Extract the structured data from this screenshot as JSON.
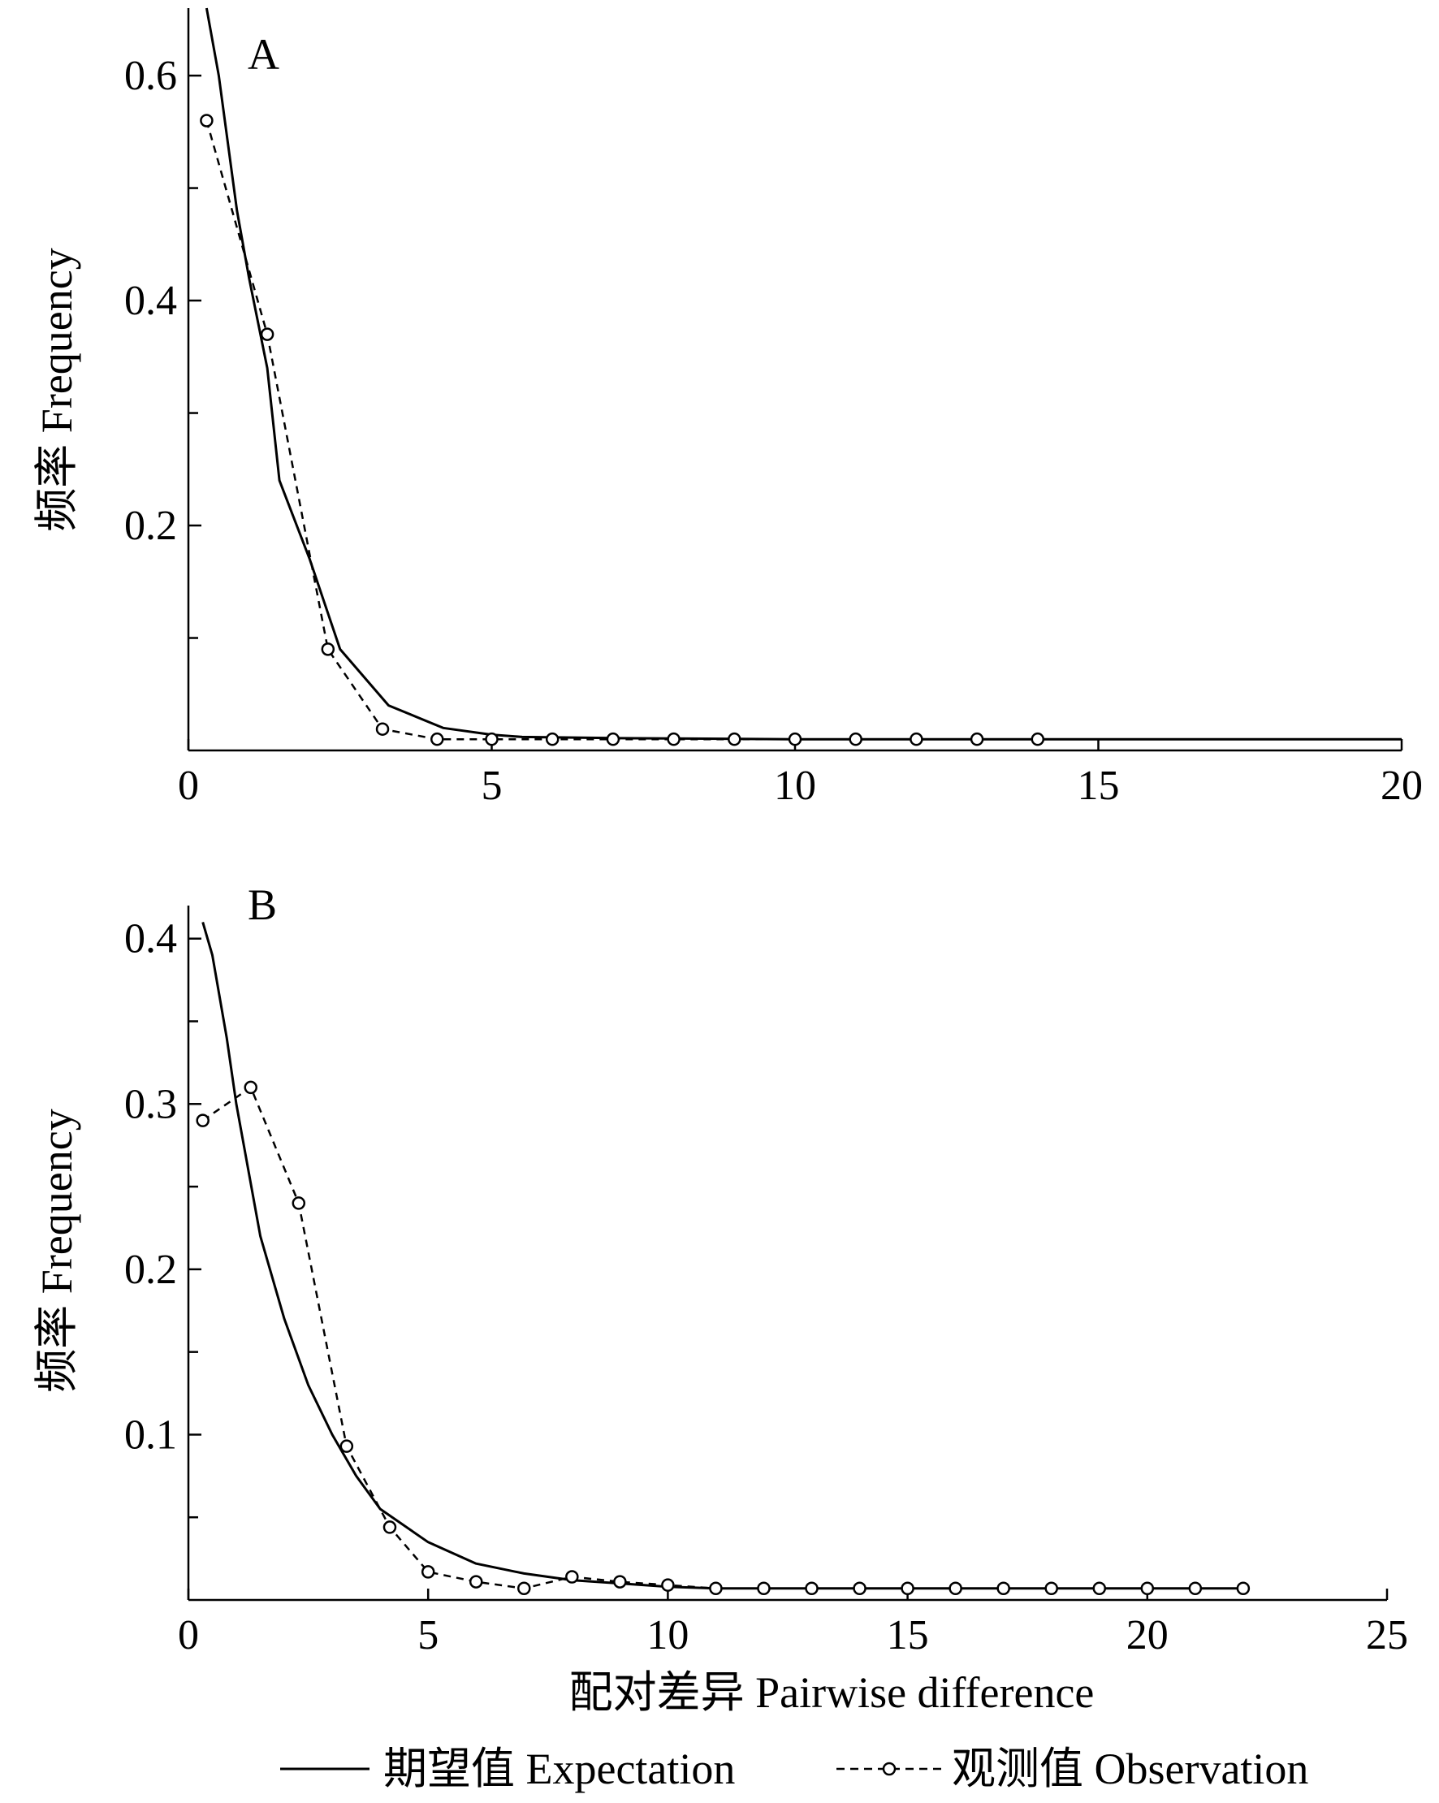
{
  "figure": {
    "xlabel": "配对差异 Pairwise difference",
    "ylabel": "频率 Frequency",
    "legend": {
      "placement": "bottom",
      "expectation_label": "期望值 Expectation",
      "observation_label": "观测值 Observation"
    }
  },
  "chart_data": [
    {
      "type": "line",
      "panel_label": "A",
      "xlabel": "",
      "ylabel": "频率 Frequency",
      "xlim": [
        0,
        20
      ],
      "ylim": [
        0,
        0.66
      ],
      "x_ticks": [
        0,
        5,
        10,
        15,
        20
      ],
      "y_ticks": [
        0.2,
        0.4,
        0.6
      ],
      "grid": false,
      "series": [
        {
          "name": "期望值 Expectation",
          "style": "solid",
          "x": [
            0.3,
            0.5,
            0.8,
            1.0,
            1.3,
            1.5,
            2.0,
            2.5,
            3.3,
            4.2,
            5.0,
            5.5,
            7,
            10,
            15,
            20
          ],
          "y": [
            0.66,
            0.6,
            0.48,
            0.42,
            0.34,
            0.24,
            0.17,
            0.09,
            0.04,
            0.02,
            0.014,
            0.012,
            0.011,
            0.01,
            0.01,
            0.01
          ]
        },
        {
          "name": "观测值 Observation",
          "style": "dashed",
          "x": [
            0.3,
            1.3,
            2.3,
            3.2,
            4.1,
            5.0,
            6.0,
            7.0,
            8.0,
            9.0,
            10.0,
            11.0,
            12.0,
            13.0,
            14.0
          ],
          "y": [
            0.56,
            0.37,
            0.09,
            0.019,
            0.01,
            0.01,
            0.01,
            0.01,
            0.01,
            0.01,
            0.01,
            0.01,
            0.01,
            0.01,
            0.01
          ]
        }
      ]
    },
    {
      "type": "line",
      "panel_label": "B",
      "xlabel": "配对差异 Pairwise difference",
      "ylabel": "频率 Frequency",
      "xlim": [
        0,
        25
      ],
      "ylim": [
        0,
        0.42
      ],
      "x_ticks": [
        0,
        5,
        10,
        15,
        20,
        25
      ],
      "y_ticks": [
        0.1,
        0.2,
        0.3,
        0.4
      ],
      "grid": false,
      "series": [
        {
          "name": "期望值 Expectation",
          "style": "solid",
          "x": [
            0.3,
            0.5,
            0.8,
            1.0,
            1.5,
            2.0,
            2.5,
            3.0,
            3.5,
            4.0,
            5.0,
            6.0,
            7.0,
            8.0,
            9.0,
            10.0,
            11.0,
            12.0,
            15.0,
            20.0,
            22.0
          ],
          "y": [
            0.41,
            0.39,
            0.34,
            0.3,
            0.22,
            0.17,
            0.13,
            0.1,
            0.075,
            0.055,
            0.035,
            0.022,
            0.016,
            0.012,
            0.01,
            0.008,
            0.007,
            0.007,
            0.007,
            0.007,
            0.007
          ]
        },
        {
          "name": "观测值 Observation",
          "style": "dashed",
          "x": [
            0.3,
            1.3,
            2.3,
            3.3,
            4.2,
            5.0,
            6.0,
            7.0,
            8.0,
            9.0,
            10.0,
            11.0,
            12.0,
            13.0,
            14.0,
            15.0,
            16.0,
            17.0,
            18.0,
            19.0,
            20.0,
            21.0,
            22.0
          ],
          "y": [
            0.29,
            0.31,
            0.24,
            0.093,
            0.044,
            0.017,
            0.011,
            0.007,
            0.014,
            0.011,
            0.009,
            0.007,
            0.007,
            0.007,
            0.007,
            0.007,
            0.007,
            0.007,
            0.007,
            0.007,
            0.007,
            0.007,
            0.007
          ]
        }
      ]
    }
  ]
}
